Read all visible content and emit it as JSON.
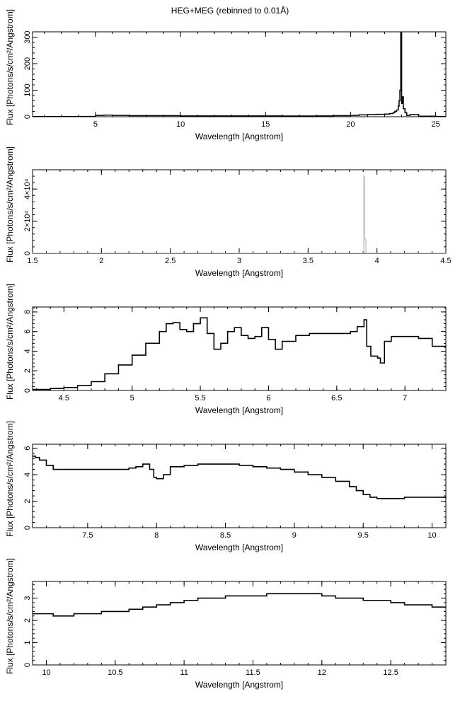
{
  "figure": {
    "title": "HEG+MEG (rebinned to 0.01Å)"
  },
  "chart_data": [
    {
      "type": "line",
      "xlabel": "Wavelength [Angstrom]",
      "ylabel": "Flux [Photons/s/cm²/Angstrom]",
      "xlim": [
        1.3,
        25.6
      ],
      "ylim": [
        0,
        320
      ],
      "xticks": [
        "5",
        "10",
        "15",
        "20",
        "25"
      ],
      "yticks": [
        "0",
        "100",
        "200",
        "300"
      ],
      "step": true,
      "series": [
        {
          "x": [
            1.3,
            2,
            3,
            4,
            4.8,
            5,
            5.5,
            6,
            7,
            8,
            9,
            10,
            11,
            12,
            13,
            14,
            15,
            16,
            17,
            18,
            19,
            20,
            20.5,
            21,
            21.5,
            22,
            22.3,
            22.5,
            22.6,
            22.7,
            22.8,
            22.85,
            22.9,
            22.95,
            23.0,
            23.05,
            23.1,
            23.2,
            23.3,
            23.5,
            24,
            25,
            25.6
          ],
          "y": [
            0.5,
            0.5,
            0.5,
            1,
            1,
            5,
            6,
            5,
            4,
            4,
            4,
            3,
            3,
            3,
            3,
            3,
            3,
            2.5,
            2.5,
            3,
            4,
            5,
            7,
            8,
            9,
            10,
            12,
            15,
            20,
            25,
            40,
            60,
            100,
            320,
            50,
            75,
            30,
            15,
            5,
            8,
            2,
            1,
            1
          ]
        }
      ]
    },
    {
      "type": "line",
      "xlabel": "Wavelength [Angstrom]",
      "ylabel": "Flux [Photons/s/cm²/Angstrom]",
      "xlim": [
        1.5,
        4.5
      ],
      "ylim": [
        0,
        52000
      ],
      "xticks": [
        "1.5",
        "2",
        "2.5",
        "3",
        "3.5",
        "4",
        "4.5"
      ],
      "yticks": [
        "0",
        "2×10⁴",
        "4×10⁴"
      ],
      "step": true,
      "series": [
        {
          "x": [
            1.5,
            3.9,
            3.905,
            3.91,
            3.915,
            3.92,
            3.925,
            4.5
          ],
          "y": [
            0,
            0,
            48000,
            9000,
            8000,
            0,
            0,
            0
          ]
        }
      ]
    },
    {
      "type": "line",
      "xlabel": "Wavelength [Angstrom]",
      "ylabel": "Flux [Photons/s/cm²/Angstrom]",
      "xlim": [
        4.27,
        7.3
      ],
      "ylim": [
        0,
        8.5
      ],
      "xticks": [
        "4.5",
        "5",
        "5.5",
        "6",
        "6.5",
        "7"
      ],
      "yticks": [
        "0",
        "2",
        "4",
        "6",
        "8"
      ],
      "step": true,
      "series": [
        {
          "x": [
            4.27,
            4.3,
            4.4,
            4.5,
            4.6,
            4.7,
            4.8,
            4.9,
            5.0,
            5.1,
            5.2,
            5.25,
            5.3,
            5.35,
            5.4,
            5.45,
            5.5,
            5.55,
            5.6,
            5.65,
            5.7,
            5.75,
            5.8,
            5.85,
            5.9,
            5.95,
            6.0,
            6.05,
            6.1,
            6.2,
            6.3,
            6.4,
            6.5,
            6.6,
            6.65,
            6.7,
            6.72,
            6.75,
            6.8,
            6.82,
            6.85,
            6.9,
            7.0,
            7.1,
            7.2,
            7.3
          ],
          "y": [
            0.1,
            0.1,
            0.2,
            0.3,
            0.5,
            0.9,
            1.7,
            2.6,
            3.6,
            4.8,
            6.0,
            6.8,
            6.9,
            6.2,
            6.0,
            6.8,
            7.4,
            5.8,
            4.2,
            4.8,
            6.0,
            6.4,
            5.6,
            5.3,
            5.5,
            6.4,
            5.2,
            4.2,
            5.0,
            5.6,
            5.8,
            5.8,
            5.8,
            6.0,
            6.5,
            7.2,
            4.5,
            3.5,
            3.3,
            2.8,
            5.0,
            5.5,
            5.5,
            5.3,
            4.5,
            4.4
          ]
        }
      ]
    },
    {
      "type": "line",
      "xlabel": "Wavelength [Angstrom]",
      "ylabel": "Flux [Photons/s/cm²/Angstrom]",
      "xlim": [
        7.1,
        10.1
      ],
      "ylim": [
        0,
        6.3
      ],
      "xticks": [
        "7.5",
        "8",
        "8.5",
        "9",
        "9.5",
        "10"
      ],
      "yticks": [
        "0",
        "2",
        "4",
        "6"
      ],
      "step": true,
      "series": [
        {
          "x": [
            7.1,
            7.12,
            7.15,
            7.2,
            7.25,
            7.3,
            7.4,
            7.5,
            7.6,
            7.7,
            7.8,
            7.85,
            7.9,
            7.95,
            7.98,
            8.0,
            8.05,
            8.1,
            8.2,
            8.3,
            8.4,
            8.5,
            8.6,
            8.7,
            8.8,
            8.9,
            9.0,
            9.1,
            9.2,
            9.3,
            9.4,
            9.45,
            9.5,
            9.55,
            9.6,
            9.7,
            9.8,
            9.9,
            10.0,
            10.1
          ],
          "y": [
            5.4,
            5.3,
            5.1,
            4.7,
            4.4,
            4.4,
            4.4,
            4.4,
            4.4,
            4.4,
            4.5,
            4.6,
            4.8,
            4.4,
            3.8,
            3.7,
            4.0,
            4.6,
            4.7,
            4.8,
            4.8,
            4.8,
            4.7,
            4.6,
            4.5,
            4.4,
            4.2,
            4.0,
            3.8,
            3.5,
            3.1,
            2.8,
            2.5,
            2.3,
            2.2,
            2.2,
            2.3,
            2.3,
            2.3,
            2.2
          ]
        }
      ]
    },
    {
      "type": "line",
      "xlabel": "Wavelength [Angstrom]",
      "ylabel": "Flux [Photons/s/cm²/Angstrom]",
      "xlim": [
        9.9,
        12.9
      ],
      "ylim": [
        0,
        3.75
      ],
      "xticks": [
        "10",
        "10.5",
        "11",
        "11.5",
        "12",
        "12.5"
      ],
      "yticks": [
        "0",
        "1",
        "2",
        "3"
      ],
      "step": true,
      "series": [
        {
          "x": [
            9.9,
            10.0,
            10.05,
            10.1,
            10.2,
            10.3,
            10.4,
            10.5,
            10.6,
            10.7,
            10.8,
            10.9,
            11.0,
            11.1,
            11.2,
            11.3,
            11.4,
            11.5,
            11.6,
            11.7,
            11.8,
            11.9,
            12.0,
            12.1,
            12.2,
            12.3,
            12.4,
            12.5,
            12.6,
            12.7,
            12.8,
            12.9
          ],
          "y": [
            2.3,
            2.3,
            2.2,
            2.2,
            2.3,
            2.3,
            2.4,
            2.4,
            2.5,
            2.6,
            2.7,
            2.8,
            2.9,
            3.0,
            3.0,
            3.1,
            3.1,
            3.1,
            3.2,
            3.2,
            3.2,
            3.2,
            3.1,
            3.0,
            3.0,
            2.9,
            2.9,
            2.8,
            2.7,
            2.7,
            2.6,
            2.6
          ]
        }
      ]
    }
  ]
}
